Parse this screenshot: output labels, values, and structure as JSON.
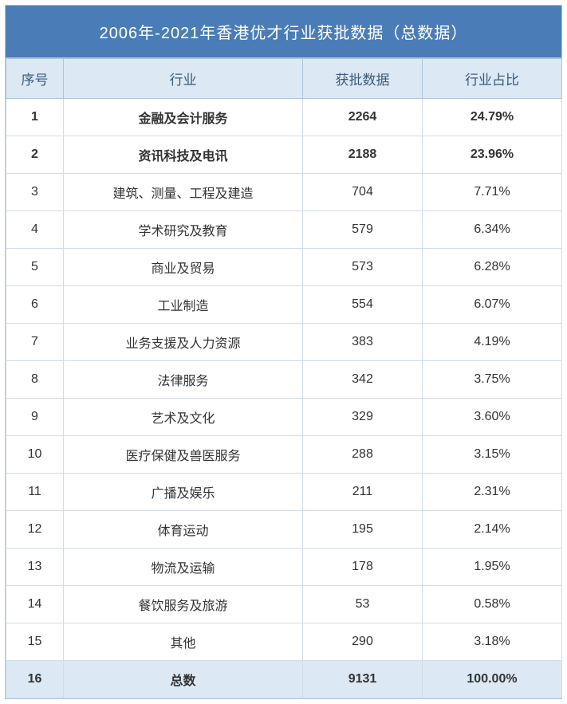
{
  "title": "2006年-2021年香港优才行业获批数据（总数据）",
  "columns": {
    "seq": "序号",
    "industry": "行业",
    "count": "获批数据",
    "percent": "行业占比"
  },
  "rows": [
    {
      "seq": "1",
      "industry": "金融及会计服务",
      "count": "2264",
      "percent": "24.79%",
      "bold": true
    },
    {
      "seq": "2",
      "industry": "资讯科技及电讯",
      "count": "2188",
      "percent": "23.96%",
      "bold": true
    },
    {
      "seq": "3",
      "industry": "建筑、测量、工程及建造",
      "count": "704",
      "percent": "7.71%"
    },
    {
      "seq": "4",
      "industry": "学术研究及教育",
      "count": "579",
      "percent": "6.34%"
    },
    {
      "seq": "5",
      "industry": "商业及贸易",
      "count": "573",
      "percent": "6.28%"
    },
    {
      "seq": "6",
      "industry": "工业制造",
      "count": "554",
      "percent": "6.07%"
    },
    {
      "seq": "7",
      "industry": "业务支援及人力资源",
      "count": "383",
      "percent": "4.19%"
    },
    {
      "seq": "8",
      "industry": "法律服务",
      "count": "342",
      "percent": "3.75%"
    },
    {
      "seq": "9",
      "industry": "艺术及文化",
      "count": "329",
      "percent": "3.60%"
    },
    {
      "seq": "10",
      "industry": "医疗保健及兽医服务",
      "count": "288",
      "percent": "3.15%"
    },
    {
      "seq": "11",
      "industry": "广播及娱乐",
      "count": "211",
      "percent": "2.31%"
    },
    {
      "seq": "12",
      "industry": "体育运动",
      "count": "195",
      "percent": "2.14%"
    },
    {
      "seq": "13",
      "industry": "物流及运输",
      "count": "178",
      "percent": "1.95%"
    },
    {
      "seq": "14",
      "industry": "餐饮服务及旅游",
      "count": "53",
      "percent": "0.58%"
    },
    {
      "seq": "15",
      "industry": "其他",
      "count": "290",
      "percent": "3.18%"
    },
    {
      "seq": "16",
      "industry": "总数",
      "count": "9131",
      "percent": "100.00%",
      "total": true
    }
  ],
  "style": {
    "title_bg": "#4a7db8",
    "header_bg": "#dce9f5",
    "border_color": "#b0c4d8",
    "cell_border_color": "#d0dce8",
    "text_color": "#333333",
    "header_text_color": "#3a5a7a"
  }
}
